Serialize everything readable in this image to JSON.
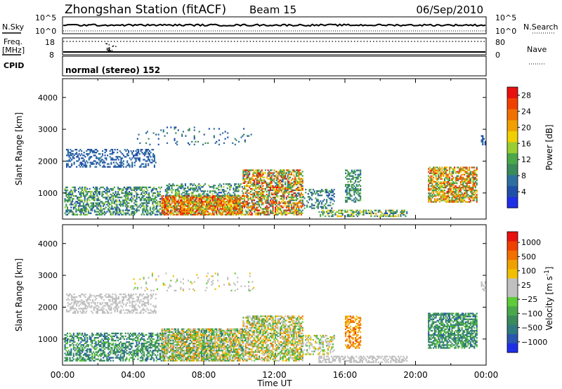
{
  "header": {
    "station": "Zhongshan Station (fitACF)",
    "beam": "Beam 15",
    "date": "06/Sep/2010"
  },
  "status_panel": {
    "nsky_label": "N.Sky",
    "nsky_ticks": [
      "10^5",
      "10^0"
    ],
    "nsearch_label": "N.Search",
    "nsearch_ticks": [
      "10^5",
      "10^0"
    ],
    "freq_label": "Freq.",
    "freq_unit": "[MHz]",
    "freq_ticks": [
      "18",
      "8"
    ],
    "nave_label": "Nave",
    "nave_ticks": [
      "80",
      "0"
    ],
    "cpid_label": "CPID",
    "cpid_value": "normal (stereo) 152"
  },
  "colors": {
    "power_scale": [
      "#1f2fe8",
      "#1f4fa8",
      "#2f6fa0",
      "#3a8a5a",
      "#4aa84a",
      "#9acd32",
      "#f0d000",
      "#f0a000",
      "#f07000",
      "#f04000",
      "#e81010"
    ],
    "velocity_scale": [
      "#1f2fe8",
      "#2a55b0",
      "#2f7a80",
      "#3a8a5a",
      "#4aa84a",
      "#5ecb3a",
      "#c0c0c0",
      "#c0c0c0",
      "#f0c000",
      "#f0a000",
      "#f07000",
      "#f04000",
      "#e81010"
    ],
    "ground_scatter": "#c0c0c0"
  },
  "chart_data": [
    {
      "type": "heatmap",
      "name": "power",
      "xlabel": "Time UT",
      "ylabel": "Slant Range [km]",
      "x_ticks": [
        "00:00",
        "04:00",
        "08:00",
        "12:00",
        "16:00",
        "20:00",
        "00:00"
      ],
      "y_ticks": [
        "1000",
        "2000",
        "3000",
        "4000"
      ],
      "xlim_hours": [
        0,
        24
      ],
      "ylim_km": [
        180,
        4590
      ],
      "colorbar_label": "Power [dB]",
      "colorbar_ticks": [
        "28",
        "24",
        "20",
        "16",
        "12",
        "8",
        "4"
      ],
      "colorbar_range": [
        0,
        30
      ],
      "regions": [
        {
          "t0": 0.1,
          "t1": 5.6,
          "r0": 300,
          "r1": 1200,
          "v_min": 3,
          "v_max": 16,
          "density": 0.5
        },
        {
          "t0": 5.6,
          "t1": 10.2,
          "r0": 300,
          "r1": 900,
          "v_min": 10,
          "v_max": 30,
          "density": 0.85
        },
        {
          "t0": 5.8,
          "t1": 10.2,
          "r0": 900,
          "r1": 1300,
          "v_min": 4,
          "v_max": 16,
          "density": 0.4
        },
        {
          "t0": 10.2,
          "t1": 13.6,
          "r0": 300,
          "r1": 1700,
          "v_min": 6,
          "v_max": 30,
          "density": 0.6
        },
        {
          "t0": 13.6,
          "t1": 15.4,
          "r0": 500,
          "r1": 1100,
          "v_min": 4,
          "v_max": 12,
          "density": 0.35
        },
        {
          "t0": 14.5,
          "t1": 19.5,
          "r0": 250,
          "r1": 450,
          "v_min": 4,
          "v_max": 20,
          "density": 0.5
        },
        {
          "t0": 0.2,
          "t1": 5.3,
          "r0": 1800,
          "r1": 2350,
          "v_min": 3,
          "v_max": 8,
          "density": 0.35
        },
        {
          "t0": 4.0,
          "t1": 10.8,
          "r0": 2500,
          "r1": 3050,
          "v_min": 3,
          "v_max": 10,
          "density": 0.07
        },
        {
          "t0": 16.0,
          "t1": 16.9,
          "r0": 700,
          "r1": 1700,
          "v_min": 6,
          "v_max": 14,
          "density": 0.5
        },
        {
          "t0": 20.7,
          "t1": 23.5,
          "r0": 700,
          "r1": 1800,
          "v_min": 8,
          "v_max": 28,
          "density": 0.65
        },
        {
          "t0": 23.7,
          "t1": 24.0,
          "r0": 2500,
          "r1": 2800,
          "v_min": 3,
          "v_max": 6,
          "density": 0.5
        }
      ]
    },
    {
      "type": "heatmap",
      "name": "velocity",
      "xlabel": "Time UT",
      "ylabel": "Slant Range [km]",
      "x_ticks": [
        "00:00",
        "04:00",
        "08:00",
        "12:00",
        "16:00",
        "20:00",
        "00:00"
      ],
      "y_ticks": [
        "1000",
        "2000",
        "3000",
        "4000"
      ],
      "xlim_hours": [
        0,
        24
      ],
      "ylim_km": [
        180,
        4590
      ],
      "colorbar_label": "Velocity [m s",
      "colorbar_unit_exponent": "-1",
      "colorbar_unit_close": "]",
      "colorbar_ticks": [
        "1000",
        "500",
        "100",
        "25",
        "−25",
        "−100",
        "−500",
        "−1000"
      ],
      "regions": [
        {
          "t0": 0.1,
          "t1": 5.6,
          "r0": 300,
          "r1": 1200,
          "v_min": 1,
          "v_max": 5,
          "density": 0.5
        },
        {
          "t0": 5.6,
          "t1": 10.2,
          "r0": 300,
          "r1": 1300,
          "v_min": 2,
          "v_max": 10,
          "density": 0.75
        },
        {
          "t0": 10.2,
          "t1": 13.6,
          "r0": 300,
          "r1": 1700,
          "v_min": 3,
          "v_max": 10,
          "density": 0.6
        },
        {
          "t0": 13.6,
          "t1": 15.4,
          "r0": 500,
          "r1": 1100,
          "v_min": 4,
          "v_max": 9,
          "density": 0.35
        },
        {
          "t0": 14.5,
          "t1": 19.5,
          "r0": 250,
          "r1": 450,
          "v_min": 6,
          "v_max": 7,
          "density": 0.5
        },
        {
          "t0": 0.2,
          "t1": 5.3,
          "r0": 1800,
          "r1": 2400,
          "v_min": 6,
          "v_max": 7,
          "density": 0.4
        },
        {
          "t0": 4.0,
          "t1": 10.8,
          "r0": 2500,
          "r1": 3050,
          "v_min": 5,
          "v_max": 8,
          "density": 0.07
        },
        {
          "t0": 16.0,
          "t1": 16.9,
          "r0": 700,
          "r1": 1700,
          "v_min": 8,
          "v_max": 11,
          "density": 0.5
        },
        {
          "t0": 20.7,
          "t1": 23.5,
          "r0": 700,
          "r1": 1800,
          "v_min": 1,
          "v_max": 5,
          "density": 0.65
        },
        {
          "t0": 23.7,
          "t1": 24.0,
          "r0": 2500,
          "r1": 2800,
          "v_min": 6,
          "v_max": 7,
          "density": 0.5
        }
      ]
    }
  ]
}
